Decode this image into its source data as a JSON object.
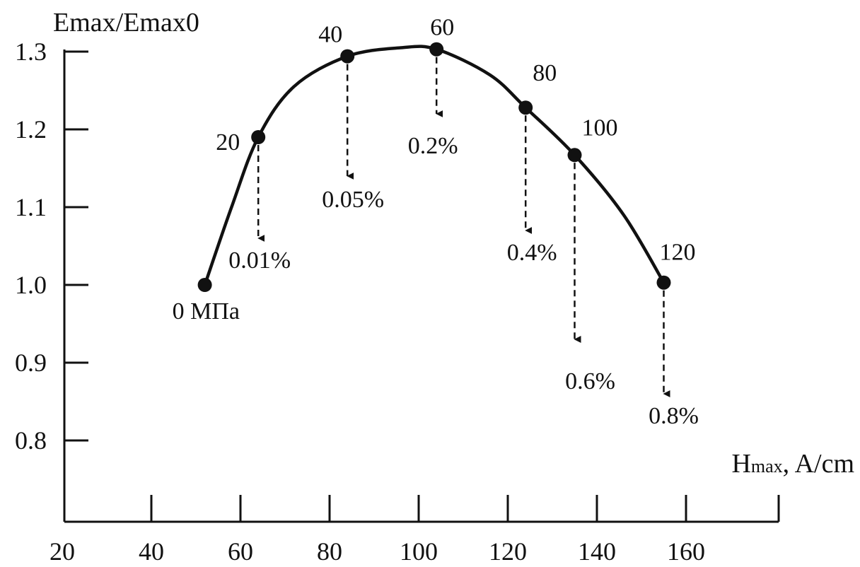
{
  "chart_data": {
    "type": "line",
    "ylabel": "Emax/Emax0",
    "xlabel_main": "H",
    "xlabel_sub": "max",
    "xlabel_unit": ", A/cm",
    "xlim": [
      20,
      180
    ],
    "ylim": [
      0.7,
      1.33
    ],
    "x_ticks": [
      20,
      40,
      60,
      80,
      100,
      120,
      140,
      160
    ],
    "y_ticks": [
      0.8,
      0.9,
      1.0,
      1.1,
      1.2,
      1.3
    ],
    "y_tick_labels": [
      "0.8",
      "0.9",
      "1.0",
      "1.1",
      "1.2",
      "1.3"
    ],
    "curve": {
      "x": [
        52,
        58,
        64,
        72,
        84,
        96,
        104,
        116,
        124,
        135,
        146,
        155
      ],
      "y": [
        1.0,
        1.1,
        1.19,
        1.255,
        1.294,
        1.305,
        1.303,
        1.27,
        1.228,
        1.167,
        1.09,
        1.003
      ]
    },
    "points": [
      {
        "x": 52,
        "y": 1.0,
        "label": "0 МПа"
      },
      {
        "x": 64,
        "y": 1.19,
        "label": "20"
      },
      {
        "x": 84,
        "y": 1.294,
        "label": "40"
      },
      {
        "x": 104,
        "y": 1.303,
        "label": "60"
      },
      {
        "x": 124,
        "y": 1.228,
        "label": "80"
      },
      {
        "x": 135,
        "y": 1.167,
        "label": "100"
      },
      {
        "x": 155,
        "y": 1.003,
        "label": "120"
      }
    ],
    "strain_arrows": [
      {
        "x": 64,
        "y_from": 1.19,
        "y_to": 1.06,
        "label": "0.01%"
      },
      {
        "x": 84,
        "y_from": 1.294,
        "y_to": 1.14,
        "label": "0.05%"
      },
      {
        "x": 104,
        "y_from": 1.303,
        "y_to": 1.22,
        "label": "0.2%"
      },
      {
        "x": 124,
        "y_from": 1.228,
        "y_to": 1.07,
        "label": "0.4%"
      },
      {
        "x": 135,
        "y_from": 1.167,
        "y_to": 0.93,
        "label": "0.6%"
      },
      {
        "x": 155,
        "y_from": 1.003,
        "y_to": 0.86,
        "label": "0.8%"
      }
    ],
    "colors": {
      "line": "#111111",
      "text": "#111111",
      "background": "#ffffff"
    }
  }
}
